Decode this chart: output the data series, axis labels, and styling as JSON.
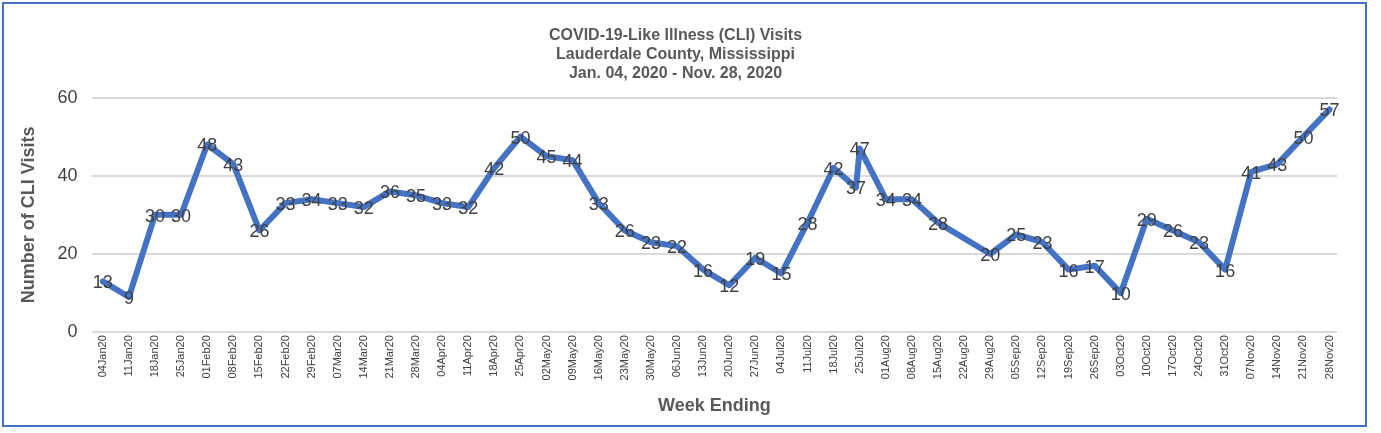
{
  "chart_data": {
    "type": "line",
    "title": [
      "COVID-19-Like Illness (CLI) Visits",
      "Lauderdale County, Mississippi",
      "Jan. 04, 2020 - Nov. 28, 2020"
    ],
    "xlabel": "Week Ending",
    "ylabel": "Number of CLI Visits",
    "x": [
      "2020-01-04",
      "2020-01-11",
      "2020-01-18",
      "2020-01-25",
      "2020-02-01",
      "2020-02-08",
      "2020-02-15",
      "2020-02-22",
      "2020-02-29",
      "2020-03-07",
      "2020-03-14",
      "2020-03-21",
      "2020-03-28",
      "2020-04-04",
      "2020-04-11",
      "2020-04-18",
      "2020-04-25",
      "2020-05-02",
      "2020-05-09",
      "2020-05-16",
      "2020-05-23",
      "2020-05-30",
      "2020-06-06",
      "2020-06-13",
      "2020-06-20",
      "2020-06-27",
      "2020-07-04",
      "2020-07-11",
      "2020-07-18",
      "2020-07-24",
      "2020-07-25",
      "2020-08-01",
      "2020-08-08",
      "2020-08-15",
      "2020-08-29",
      "2020-09-05",
      "2020-09-12",
      "2020-09-19",
      "2020-09-26",
      "2020-10-03",
      "2020-10-10",
      "2020-10-17",
      "2020-10-24",
      "2020-10-31",
      "2020-11-07",
      "2020-11-14",
      "2020-11-21",
      "2020-11-28"
    ],
    "series": [
      {
        "color": "#4472c4",
        "values": [
          13,
          9,
          30,
          30,
          48,
          43,
          26,
          33,
          34,
          33,
          32,
          36,
          35,
          33,
          32,
          42,
          50,
          45,
          44,
          33,
          26,
          23,
          22,
          16,
          12,
          19,
          15,
          28,
          42,
          37,
          47,
          34,
          34,
          28,
          20,
          25,
          23,
          16,
          17,
          10,
          29,
          26,
          23,
          16,
          41,
          43,
          50,
          57
        ]
      }
    ],
    "xlim": [
      "2020-01-01",
      "2020-11-30"
    ],
    "xticks": [
      {
        "value": "2020-01-04",
        "label": "04Jan20"
      },
      {
        "value": "2020-01-11",
        "label": "11Jan20"
      },
      {
        "value": "2020-01-18",
        "label": "18Jan20"
      },
      {
        "value": "2020-01-25",
        "label": "25Jan20"
      },
      {
        "value": "2020-02-01",
        "label": "01Feb20"
      },
      {
        "value": "2020-02-08",
        "label": "08Feb20"
      },
      {
        "value": "2020-02-15",
        "label": "15Feb20"
      },
      {
        "value": "2020-02-22",
        "label": "22Feb20"
      },
      {
        "value": "2020-02-29",
        "label": "29Feb20"
      },
      {
        "value": "2020-03-07",
        "label": "07Mar20"
      },
      {
        "value": "2020-03-14",
        "label": "14Mar20"
      },
      {
        "value": "2020-03-21",
        "label": "21Mar20"
      },
      {
        "value": "2020-03-28",
        "label": "28Mar20"
      },
      {
        "value": "2020-04-04",
        "label": "04Apr20"
      },
      {
        "value": "2020-04-11",
        "label": "11Apr20"
      },
      {
        "value": "2020-04-18",
        "label": "18Apr20"
      },
      {
        "value": "2020-04-25",
        "label": "25Apr20"
      },
      {
        "value": "2020-05-02",
        "label": "02May20"
      },
      {
        "value": "2020-05-09",
        "label": "09May20"
      },
      {
        "value": "2020-05-16",
        "label": "16May20"
      },
      {
        "value": "2020-05-23",
        "label": "23May20"
      },
      {
        "value": "2020-05-30",
        "label": "30May20"
      },
      {
        "value": "2020-06-06",
        "label": "06Jun20"
      },
      {
        "value": "2020-06-13",
        "label": "13Jun20"
      },
      {
        "value": "2020-06-20",
        "label": "20Jun20"
      },
      {
        "value": "2020-06-27",
        "label": "27Jun20"
      },
      {
        "value": "2020-07-04",
        "label": "04Jul20"
      },
      {
        "value": "2020-07-11",
        "label": "11Jul20"
      },
      {
        "value": "2020-07-18",
        "label": "18Jul20"
      },
      {
        "value": "2020-07-25",
        "label": "25Jul20"
      },
      {
        "value": "2020-08-01",
        "label": "01Aug20"
      },
      {
        "value": "2020-08-08",
        "label": "08Aug20"
      },
      {
        "value": "2020-08-15",
        "label": "15Aug20"
      },
      {
        "value": "2020-08-22",
        "label": "22Aug20"
      },
      {
        "value": "2020-08-29",
        "label": "29Aug20"
      },
      {
        "value": "2020-09-05",
        "label": "05Sep20"
      },
      {
        "value": "2020-09-12",
        "label": "12Sep20"
      },
      {
        "value": "2020-09-19",
        "label": "19Sep20"
      },
      {
        "value": "2020-09-26",
        "label": "26Sep20"
      },
      {
        "value": "2020-10-03",
        "label": "03Oct20"
      },
      {
        "value": "2020-10-10",
        "label": "10Oct20"
      },
      {
        "value": "2020-10-17",
        "label": "17Oct20"
      },
      {
        "value": "2020-10-24",
        "label": "24Oct20"
      },
      {
        "value": "2020-10-31",
        "label": "31Oct20"
      },
      {
        "value": "2020-11-07",
        "label": "07Nov20"
      },
      {
        "value": "2020-11-14",
        "label": "14Nov20"
      },
      {
        "value": "2020-11-21",
        "label": "21Nov20"
      },
      {
        "value": "2020-11-28",
        "label": "28Nov20"
      }
    ],
    "ylim": [
      0,
      60
    ],
    "yticks": [
      0,
      20,
      40,
      60
    ],
    "grid": "y",
    "legend": false,
    "marker": "none",
    "line_style": "solid",
    "data_labels": true
  }
}
